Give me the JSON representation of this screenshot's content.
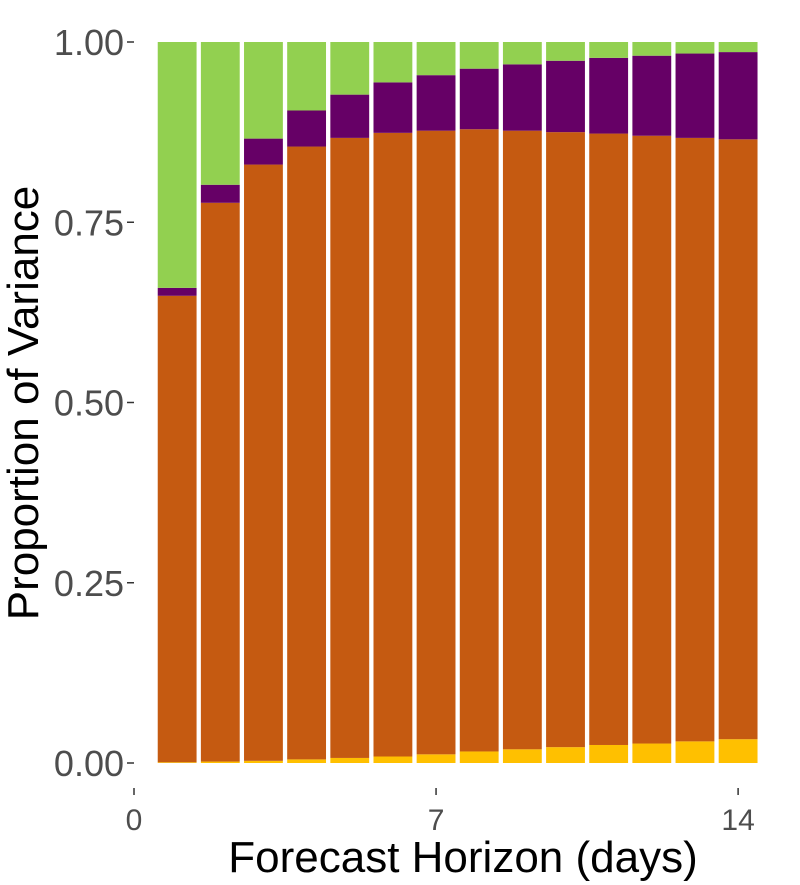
{
  "chart_data": {
    "type": "bar",
    "stacked": true,
    "xlabel": "Forecast Horizon (days)",
    "ylabel": "Proportion of Variance",
    "xlim": [
      0,
      14.6
    ],
    "ylim": [
      0,
      1.0
    ],
    "x_ticks": [
      {
        "value": 0,
        "label": "0"
      },
      {
        "value": 7,
        "label": "7"
      },
      {
        "value": 14,
        "label": "14"
      }
    ],
    "y_ticks": [
      {
        "value": 0.0,
        "label": "0.00"
      },
      {
        "value": 0.25,
        "label": "0.25"
      },
      {
        "value": 0.5,
        "label": "0.50"
      },
      {
        "value": 0.75,
        "label": "0.75"
      },
      {
        "value": 1.0,
        "label": "1.00"
      }
    ],
    "grid": false,
    "legend": "none",
    "categories": [
      1,
      2,
      3,
      4,
      5,
      6,
      7,
      8,
      9,
      10,
      11,
      12,
      13,
      14
    ],
    "series": [
      {
        "color": "#FFC000",
        "values": [
          0.001,
          0.002,
          0.003,
          0.005,
          0.007,
          0.009,
          0.012,
          0.016,
          0.019,
          0.022,
          0.025,
          0.027,
          0.03,
          0.033
        ]
      },
      {
        "color": "#C55A11",
        "values": [
          0.647,
          0.775,
          0.827,
          0.85,
          0.86,
          0.865,
          0.865,
          0.863,
          0.858,
          0.853,
          0.848,
          0.843,
          0.837,
          0.832
        ]
      },
      {
        "color": "#660066",
        "values": [
          0.011,
          0.025,
          0.036,
          0.05,
          0.06,
          0.07,
          0.077,
          0.084,
          0.092,
          0.099,
          0.105,
          0.111,
          0.117,
          0.121
        ]
      },
      {
        "color": "#92D050",
        "values": [
          0.341,
          0.198,
          0.134,
          0.095,
          0.073,
          0.056,
          0.046,
          0.037,
          0.031,
          0.026,
          0.022,
          0.019,
          0.016,
          0.014
        ]
      }
    ]
  }
}
